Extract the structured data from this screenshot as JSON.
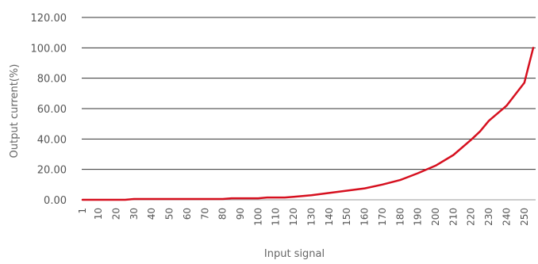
{
  "chart_data": {
    "type": "line",
    "title": "",
    "xlabel": "Input signal",
    "ylabel": "Output current(%)",
    "y_ticks": [
      "0.00",
      "20.00",
      "40.00",
      "60.00",
      "80.00",
      "100.00",
      "120.00"
    ],
    "ylim": [
      0,
      120
    ],
    "x_ticks": [
      "1",
      "10",
      "20",
      "30",
      "40",
      "50",
      "60",
      "70",
      "80",
      "90",
      "100",
      "110",
      "120",
      "130",
      "140",
      "150",
      "160",
      "170",
      "180",
      "190",
      "200",
      "210",
      "220",
      "230",
      "240",
      "250"
    ],
    "xlim": [
      1,
      255
    ],
    "grid": "horizontal",
    "line_color": "#d6101f",
    "series": [
      {
        "x": [
          1,
          10,
          20,
          25,
          30,
          40,
          50,
          60,
          70,
          80,
          85,
          90,
          100,
          105,
          110,
          115,
          120,
          125,
          130,
          140,
          150,
          160,
          170,
          180,
          190,
          200,
          210,
          220,
          225,
          230,
          240,
          250,
          255
        ],
        "y": [
          0,
          0,
          0,
          0,
          0.5,
          0.5,
          0.5,
          0.5,
          0.5,
          0.5,
          1,
          1,
          1,
          1.5,
          1.5,
          1.5,
          2,
          2.5,
          3,
          4.5,
          6,
          7.5,
          10,
          13,
          17.5,
          22.5,
          29.5,
          39.5,
          45,
          52,
          62,
          77,
          100
        ]
      }
    ]
  }
}
